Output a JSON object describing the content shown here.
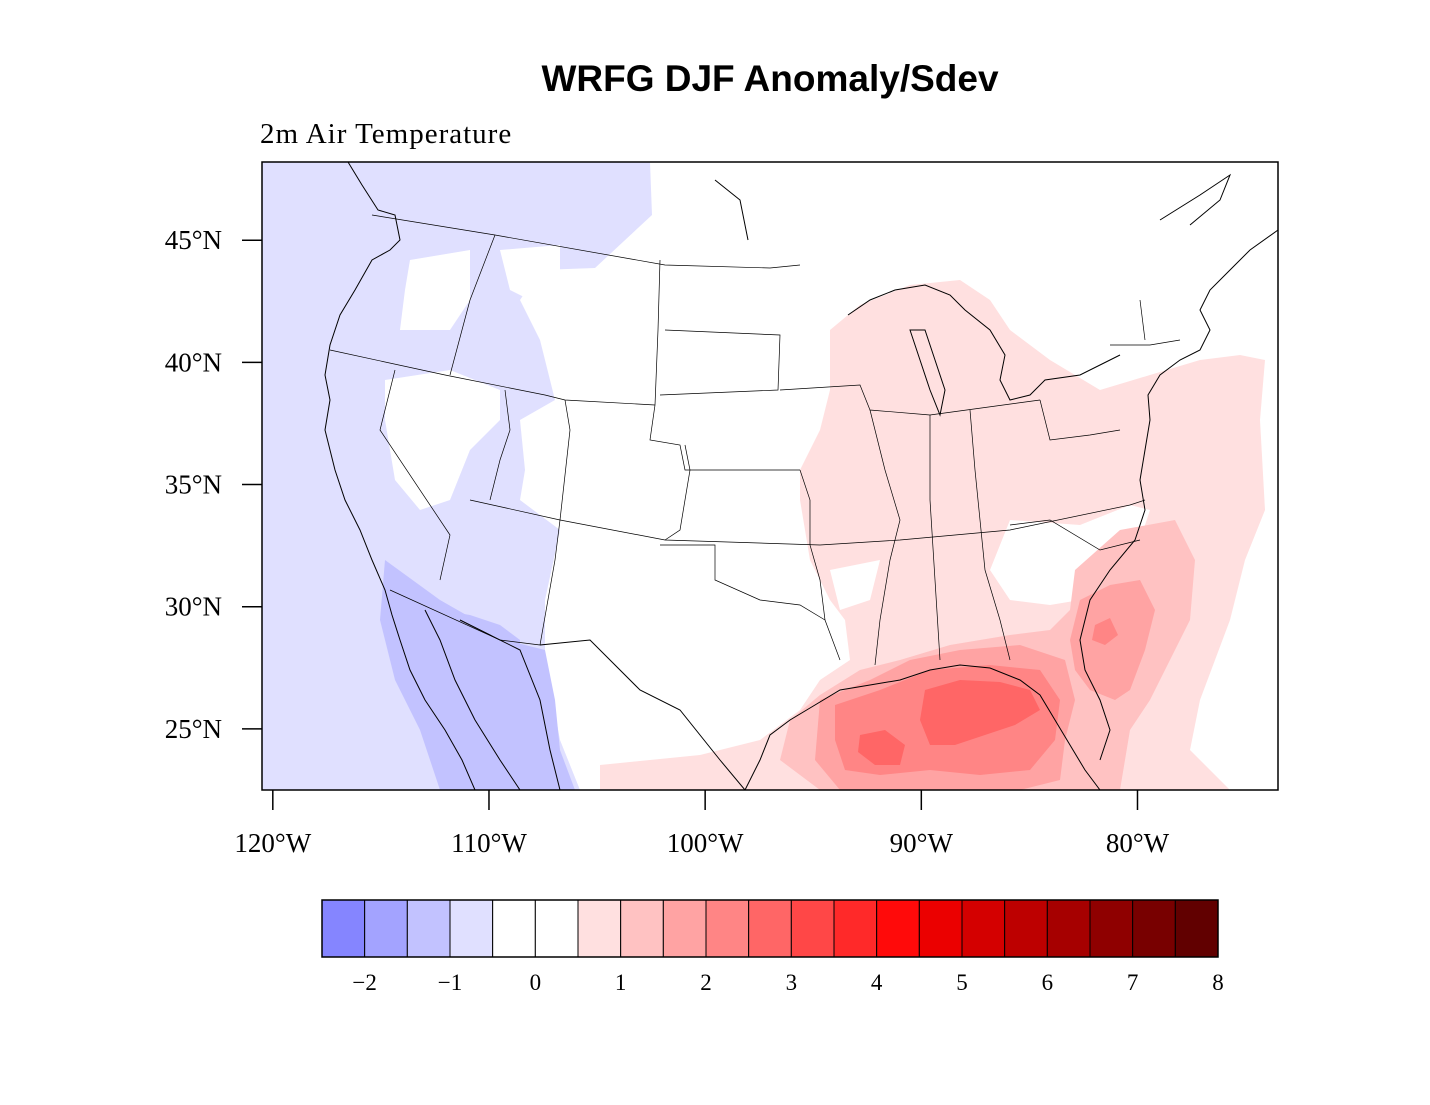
{
  "title": "WRFG DJF Anomaly/Sdev",
  "subtitle": "2m Air Temperature",
  "lat_axis": {
    "unit": "degrees N",
    "range": [
      22.5,
      48.2
    ],
    "ticks": [
      {
        "value": 45,
        "label": "45°N"
      },
      {
        "value": 40,
        "label": "40°N"
      },
      {
        "value": 35,
        "label": "35°N"
      },
      {
        "value": 30,
        "label": "30°N"
      },
      {
        "value": 25,
        "label": "25°N"
      }
    ]
  },
  "lon_axis": {
    "unit": "degrees E",
    "range": [
      -120.5,
      -73.5
    ],
    "ticks": [
      {
        "value": -120,
        "label": "120°W"
      },
      {
        "value": -110,
        "label": "110°W"
      },
      {
        "value": -100,
        "label": "100°W"
      },
      {
        "value": -90,
        "label": "90°W"
      },
      {
        "value": -80,
        "label": "80°W"
      }
    ]
  },
  "colorbar": {
    "bins": [
      "#8585ff",
      "#a3a3ff",
      "#c2c2ff",
      "#e0e0ff",
      "#ffffff",
      "#ffffff",
      "#ffe0e0",
      "#ffc2c2",
      "#ffa3a3",
      "#ff8585",
      "#ff6666",
      "#ff4747",
      "#ff2929",
      "#ff0a0a",
      "#eb0000",
      "#d40000",
      "#bd0000",
      "#a60000",
      "#8f0000",
      "#780000",
      "#610000"
    ],
    "labels": [
      "−2",
      "−1",
      "0",
      "1",
      "2",
      "3",
      "4",
      "5",
      "6",
      "7",
      "8"
    ]
  },
  "colors": {
    "neg_light": "#e0e0ff",
    "neg_mid": "#c2c2ff",
    "pos_1": "#ffe0e0",
    "pos_2": "#ffc2c2",
    "pos_3": "#ffa3a3",
    "pos_4": "#ff8585",
    "pos_5": "#ff6666"
  }
}
